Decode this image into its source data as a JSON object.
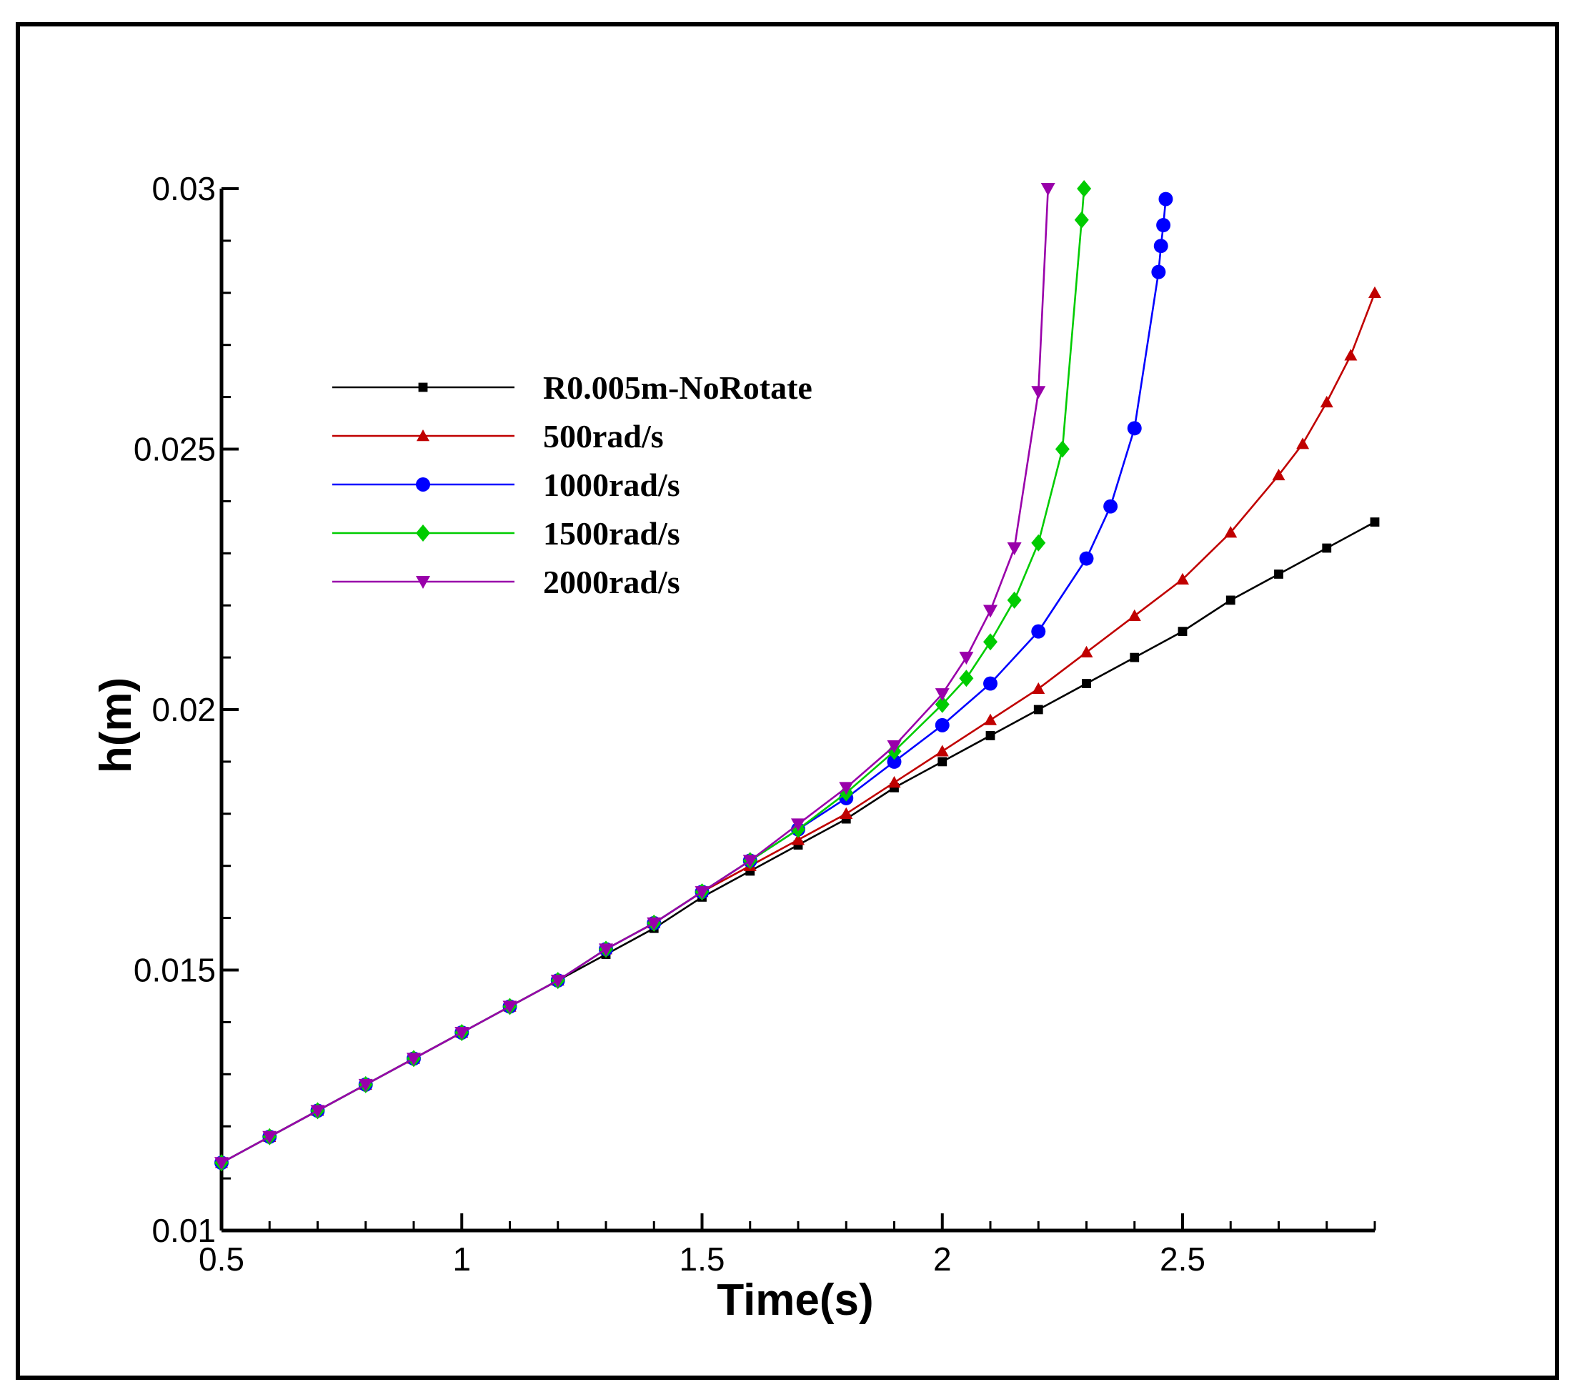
{
  "chart_data": {
    "type": "line",
    "title": "",
    "xlabel": "Time(s)",
    "ylabel": "h(m)",
    "xlim": [
      0.5,
      2.9
    ],
    "ylim": [
      0.01,
      0.03
    ],
    "x_ticks": [
      0.5,
      1,
      1.5,
      2,
      2.5
    ],
    "x_tick_labels": [
      "0.5",
      "1",
      "1.5",
      "2",
      "2.5"
    ],
    "y_ticks": [
      0.01,
      0.015,
      0.02,
      0.025,
      0.03
    ],
    "y_tick_labels": [
      "0.01",
      "0.015",
      "0.02",
      "0.025",
      "0.03"
    ],
    "legend_position": "upper-left",
    "series": [
      {
        "name": "R0.005m-NoRotate",
        "color": "#000000",
        "marker": "square",
        "x": [
          0.5,
          0.6,
          0.7,
          0.8,
          0.9,
          1.0,
          1.1,
          1.2,
          1.3,
          1.4,
          1.5,
          1.6,
          1.7,
          1.8,
          1.9,
          2.0,
          2.1,
          2.2,
          2.3,
          2.4,
          2.5,
          2.6,
          2.7,
          2.8,
          2.9
        ],
        "y": [
          0.0113,
          0.0118,
          0.0123,
          0.0128,
          0.0133,
          0.0138,
          0.0143,
          0.0148,
          0.0153,
          0.0158,
          0.0164,
          0.0169,
          0.0174,
          0.0179,
          0.0185,
          0.019,
          0.0195,
          0.02,
          0.0205,
          0.021,
          0.0215,
          0.0221,
          0.0226,
          0.0231,
          0.0236
        ]
      },
      {
        "name": "500rad/s",
        "color": "#c00000",
        "marker": "triangle-up",
        "x": [
          0.5,
          0.6,
          0.7,
          0.8,
          0.9,
          1.0,
          1.1,
          1.2,
          1.3,
          1.4,
          1.5,
          1.6,
          1.7,
          1.8,
          1.9,
          2.0,
          2.1,
          2.2,
          2.3,
          2.4,
          2.5,
          2.6,
          2.7,
          2.75,
          2.8,
          2.85,
          2.9
        ],
        "y": [
          0.0113,
          0.0118,
          0.0123,
          0.0128,
          0.0133,
          0.0138,
          0.0143,
          0.0148,
          0.0154,
          0.0159,
          0.0165,
          0.017,
          0.0175,
          0.018,
          0.0186,
          0.0192,
          0.0198,
          0.0204,
          0.0211,
          0.0218,
          0.0225,
          0.0234,
          0.0245,
          0.0251,
          0.0259,
          0.0268,
          0.028
        ]
      },
      {
        "name": "1000rad/s",
        "color": "#0000ff",
        "marker": "circle",
        "x": [
          0.5,
          0.6,
          0.7,
          0.8,
          0.9,
          1.0,
          1.1,
          1.2,
          1.3,
          1.4,
          1.5,
          1.6,
          1.7,
          1.8,
          1.9,
          2.0,
          2.1,
          2.2,
          2.3,
          2.35,
          2.4,
          2.45,
          2.455,
          2.46,
          2.465
        ],
        "y": [
          0.0113,
          0.0118,
          0.0123,
          0.0128,
          0.0133,
          0.0138,
          0.0143,
          0.0148,
          0.0154,
          0.0159,
          0.0165,
          0.0171,
          0.0177,
          0.0183,
          0.019,
          0.0197,
          0.0205,
          0.0215,
          0.0229,
          0.0239,
          0.0254,
          0.0284,
          0.0289,
          0.0293,
          0.0298
        ]
      },
      {
        "name": "1500rad/s",
        "color": "#00cc00",
        "marker": "diamond",
        "x": [
          0.5,
          0.6,
          0.7,
          0.8,
          0.9,
          1.0,
          1.1,
          1.2,
          1.3,
          1.4,
          1.5,
          1.6,
          1.7,
          1.8,
          1.9,
          2.0,
          2.05,
          2.1,
          2.15,
          2.2,
          2.25,
          2.29,
          2.295
        ],
        "y": [
          0.0113,
          0.0118,
          0.0123,
          0.0128,
          0.0133,
          0.0138,
          0.0143,
          0.0148,
          0.0154,
          0.0159,
          0.0165,
          0.0171,
          0.0177,
          0.0184,
          0.0192,
          0.0201,
          0.0206,
          0.0213,
          0.0221,
          0.0232,
          0.025,
          0.0294,
          0.03
        ]
      },
      {
        "name": "2000rad/s",
        "color": "#9900aa",
        "marker": "triangle-down",
        "x": [
          0.5,
          0.6,
          0.7,
          0.8,
          0.9,
          1.0,
          1.1,
          1.2,
          1.3,
          1.4,
          1.5,
          1.6,
          1.7,
          1.8,
          1.9,
          2.0,
          2.05,
          2.1,
          2.15,
          2.2,
          2.22
        ],
        "y": [
          0.0113,
          0.0118,
          0.0123,
          0.0128,
          0.0133,
          0.0138,
          0.0143,
          0.0148,
          0.0154,
          0.0159,
          0.0165,
          0.0171,
          0.0178,
          0.0185,
          0.0193,
          0.0203,
          0.021,
          0.0219,
          0.0231,
          0.0261,
          0.03
        ]
      }
    ]
  }
}
